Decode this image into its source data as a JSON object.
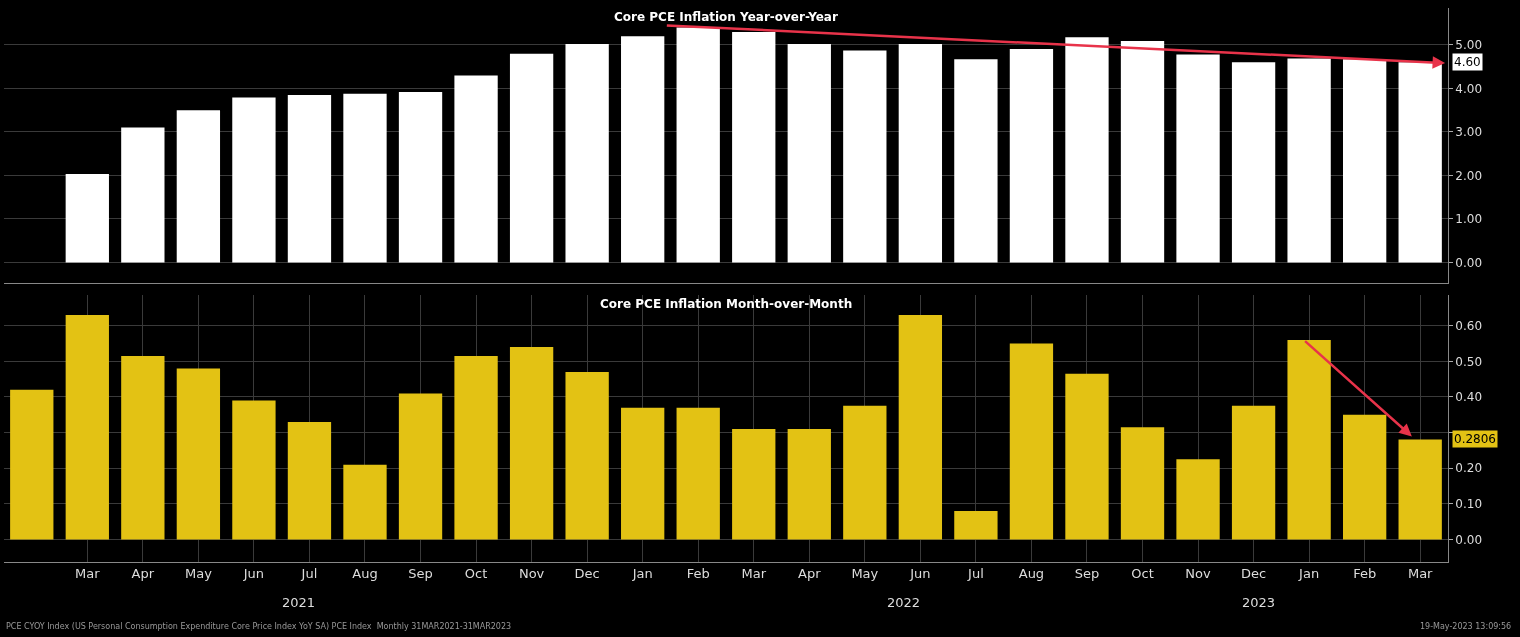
{
  "chart_data": [
    {
      "type": "bar",
      "title": "Core PCE Inflation Year-over-Year",
      "categories": [
        null,
        null,
        null,
        null,
        null,
        null,
        null,
        null,
        null,
        null,
        null,
        null,
        null,
        null,
        null,
        null,
        null,
        null,
        null,
        null,
        null,
        null,
        null,
        null,
        null,
        null
      ],
      "series": [
        {
          "color": "#ffffff",
          "values": [
            null,
            2.03,
            3.1,
            3.5,
            3.79,
            3.85,
            3.88,
            3.92,
            4.3,
            4.8,
            5.02,
            5.2,
            5.4,
            5.3,
            5.02,
            4.87,
            5.02,
            4.67,
            4.91,
            5.18,
            5.09,
            4.78,
            4.6,
            4.69,
            4.67,
            4.6
          ]
        }
      ],
      "ylim": [
        -0.48,
        5.85
      ],
      "yticks": [
        {
          "value": 0,
          "label": "0.00"
        },
        {
          "value": 1,
          "label": "1.00"
        },
        {
          "value": 2,
          "label": "2.00"
        },
        {
          "value": 3,
          "label": "3.00"
        },
        {
          "value": 4,
          "label": "4.00"
        },
        {
          "value": 5,
          "label": "5.00"
        }
      ],
      "annotations": [
        "4.60"
      ],
      "grid": true
    },
    {
      "type": "bar",
      "title": "Core PCE Inflation Month-over-Month",
      "categories": [
        null,
        "Mar",
        "Apr",
        "May",
        "Jun",
        "Jul",
        "Aug",
        "Sep",
        "Oct",
        "Nov",
        "Dec",
        "Jan",
        "Feb",
        "Mar",
        "Apr",
        "May",
        "Jun",
        "Jul",
        "Aug",
        "Sep",
        "Oct",
        "Nov",
        "Dec",
        "Jan",
        "Feb",
        "Mar"
      ],
      "series": [
        {
          "color": "#e3c214",
          "values": [
            0.42,
            0.63,
            0.515,
            0.48,
            0.39,
            0.33,
            0.21,
            0.41,
            0.515,
            0.54,
            0.47,
            0.37,
            0.37,
            0.31,
            0.31,
            0.375,
            0.63,
            0.08,
            0.55,
            0.465,
            0.315,
            0.225,
            0.375,
            0.56,
            0.35,
            0.2806
          ]
        }
      ],
      "ylim": [
        -0.062,
        0.685
      ],
      "yticks": [
        {
          "value": 0,
          "label": "0.00"
        },
        {
          "value": 0.1,
          "label": "0.10"
        },
        {
          "value": 0.2,
          "label": "0.20"
        },
        {
          "value": 0.3,
          "label": null
        },
        {
          "value": 0.4,
          "label": "0.40"
        },
        {
          "value": 0.5,
          "label": "0.50"
        },
        {
          "value": 0.6,
          "label": "0.60"
        }
      ],
      "annotations": [
        "2021",
        "2022",
        "2023",
        "PCE CYOY Index (US Personal Consumption Expenditure Core Price Index YoY SA) PCE Index  Monthly 31MAR2021-31MAR2023",
        "19-May-2023 13:09:56",
        "0.2806"
      ],
      "grid": true
    }
  ]
}
